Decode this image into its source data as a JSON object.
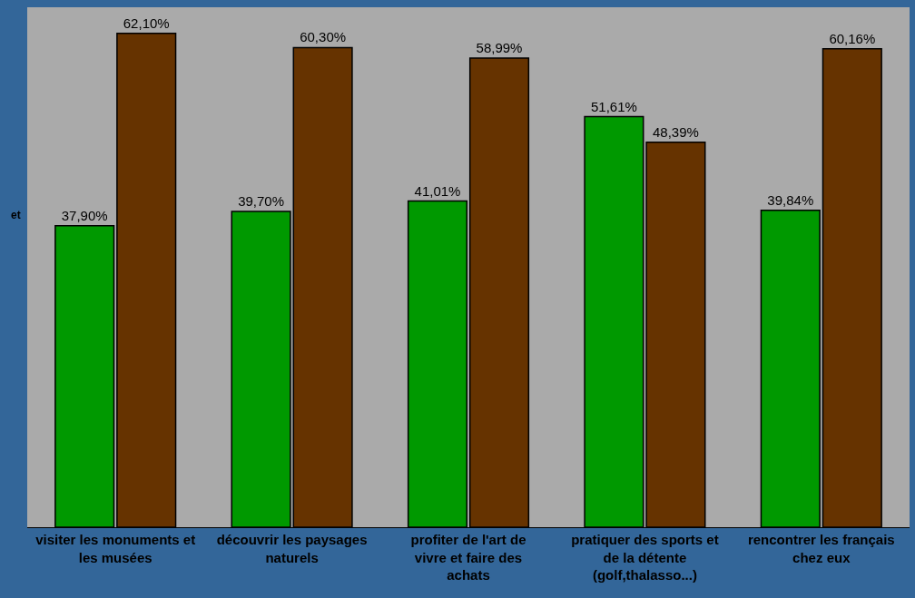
{
  "chart_data": {
    "type": "bar",
    "categories": [
      "visiter les monuments et les musées",
      "découvrir les paysages naturels",
      "profiter de l'art de vivre et faire des achats",
      "pratiquer des sports et de la détente (golf,thalasso...)",
      "rencontrer les français chez eux"
    ],
    "series": [
      {
        "color": "#009900",
        "values": [
          37.9,
          39.7,
          41.01,
          51.61,
          39.84
        ],
        "value_labels": [
          "37,90%",
          "39,70%",
          "41,01%",
          "51,61%",
          "39,84%"
        ]
      },
      {
        "color": "#663300",
        "values": [
          62.1,
          60.3,
          58.99,
          48.39,
          60.16
        ],
        "value_labels": [
          "62,10%",
          "60,30%",
          "58,99%",
          "48,39%",
          "60,16%"
        ]
      }
    ],
    "annotations": [
      "et"
    ],
    "grid": false,
    "legend": false
  }
}
